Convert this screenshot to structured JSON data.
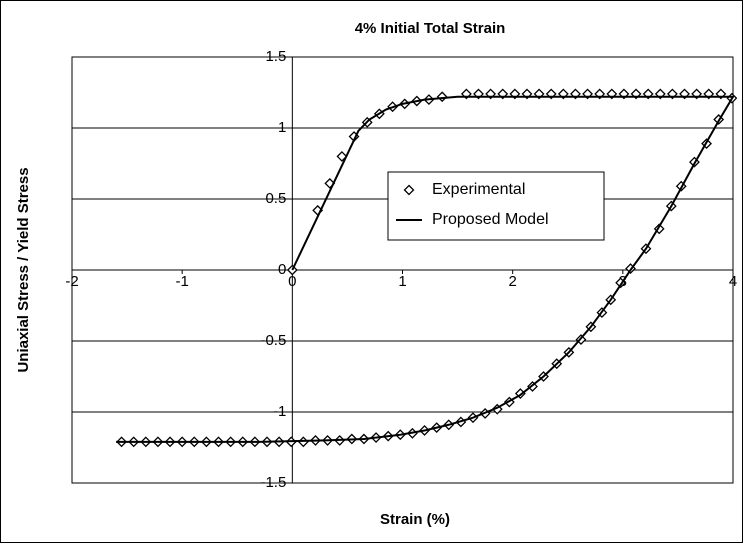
{
  "chart_data": {
    "type": "scatter",
    "title": "4% Initial Total Strain",
    "x_label": "Strain (%)",
    "y_label": "Uniaxial Stress / Yield Stress",
    "xlim": [
      -2,
      4
    ],
    "ylim": [
      -1.5,
      1.5
    ],
    "xticks": [
      -2,
      -1,
      0,
      1,
      2,
      3,
      4
    ],
    "yticks": [
      -1.5,
      -1,
      -0.5,
      0,
      0.5,
      1,
      1.5
    ],
    "grid": true,
    "legend": "center",
    "series": [
      {
        "name": "Experimental",
        "marker": "diamond",
        "color": "#000000",
        "x": [
          0,
          0.23,
          0.34,
          0.45,
          0.56,
          0.68,
          0.79,
          0.91,
          1.02,
          1.13,
          1.24,
          1.36,
          1.58,
          1.69,
          1.8,
          1.91,
          2.02,
          2.13,
          2.24,
          2.35,
          2.46,
          2.57,
          2.68,
          2.79,
          2.9,
          3.01,
          3.12,
          3.23,
          3.34,
          3.45,
          3.56,
          3.67,
          3.78,
          3.89,
          3.99,
          3.87,
          3.76,
          3.65,
          3.53,
          3.44,
          3.33,
          3.21,
          3.07,
          2.98,
          2.89,
          2.81,
          2.71,
          2.62,
          2.51,
          2.4,
          2.28,
          2.18,
          2.07,
          1.97,
          1.86,
          1.75,
          1.64,
          1.53,
          1.42,
          1.31,
          1.2,
          1.09,
          0.98,
          0.87,
          0.76,
          0.65,
          0.54,
          0.43,
          0.32,
          0.21,
          0.1,
          -0.01,
          -0.12,
          -0.23,
          -0.34,
          -0.45,
          -0.56,
          -0.67,
          -0.78,
          -0.89,
          -1.0,
          -1.11,
          -1.22,
          -1.33,
          -1.44,
          -1.55
        ],
        "values": [
          0,
          0.42,
          0.61,
          0.8,
          0.94,
          1.04,
          1.1,
          1.15,
          1.17,
          1.19,
          1.2,
          1.22,
          1.24,
          1.24,
          1.24,
          1.24,
          1.24,
          1.24,
          1.24,
          1.24,
          1.24,
          1.24,
          1.24,
          1.24,
          1.24,
          1.24,
          1.24,
          1.24,
          1.24,
          1.24,
          1.24,
          1.24,
          1.24,
          1.24,
          1.21,
          1.06,
          0.89,
          0.76,
          0.59,
          0.45,
          0.29,
          0.15,
          0.01,
          -0.09,
          -0.21,
          -0.3,
          -0.4,
          -0.49,
          -0.58,
          -0.66,
          -0.75,
          -0.82,
          -0.87,
          -0.93,
          -0.98,
          -1.01,
          -1.04,
          -1.07,
          -1.09,
          -1.11,
          -1.13,
          -1.15,
          -1.16,
          -1.17,
          -1.18,
          -1.19,
          -1.19,
          -1.2,
          -1.2,
          -1.2,
          -1.21,
          -1.21,
          -1.21,
          -1.21,
          -1.21,
          -1.21,
          -1.21,
          -1.21,
          -1.21,
          -1.21,
          -1.21,
          -1.21,
          -1.21,
          -1.21,
          -1.21,
          -1.21
        ]
      },
      {
        "name": "Proposed Model",
        "marker": "line",
        "color": "#000000",
        "x": [
          0,
          0.6,
          0.7,
          0.85,
          1.0,
          1.2,
          1.5,
          2,
          4,
          3.87,
          3.65,
          3.44,
          3.21,
          3.07,
          2.89,
          2.71,
          2.51,
          2.28,
          2.07,
          1.86,
          1.64,
          1.42,
          1.2,
          0.98,
          0.65,
          0.3,
          -0.3,
          -1.6
        ],
        "values": [
          0,
          0.98,
          1.06,
          1.13,
          1.17,
          1.2,
          1.22,
          1.22,
          1.22,
          1.05,
          0.75,
          0.45,
          0.15,
          0,
          -0.21,
          -0.4,
          -0.58,
          -0.75,
          -0.88,
          -0.97,
          -1.04,
          -1.09,
          -1.13,
          -1.16,
          -1.19,
          -1.2,
          -1.21,
          -1.21
        ]
      }
    ]
  }
}
